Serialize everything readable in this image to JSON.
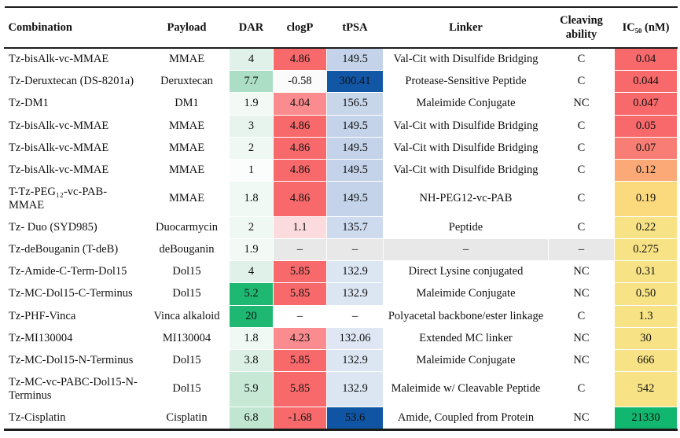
{
  "table": {
    "columns": [
      {
        "key": "combination",
        "label": "Combination"
      },
      {
        "key": "payload",
        "label": "Payload"
      },
      {
        "key": "dar",
        "label": "DAR"
      },
      {
        "key": "clogp",
        "label": "clogP"
      },
      {
        "key": "tpsa",
        "label": "tPSA"
      },
      {
        "key": "linker",
        "label": "Linker"
      },
      {
        "key": "cleaving",
        "label": "Cleaving ability"
      },
      {
        "key": "ic50",
        "label": "IC₅₀ (nM)"
      }
    ],
    "legend_colors": {
      "strong_red": "#F8696B",
      "light_red": "#FA8B8E",
      "pale_pink": "#FBDBDD",
      "orange": "#FAA977",
      "yellow": "#F7E385",
      "strong_green": "#1EB873",
      "light_green": "#E0F1E9",
      "light_blue": "#C4D3E9",
      "pale_blue": "#DCE6F3",
      "dark_blue": "#1157A6",
      "missing_gray": "#E8E8E8"
    },
    "rows": [
      {
        "combination": "Tz-bisAlk-vc-MMAE",
        "payload": "MMAE",
        "dar": "4",
        "clogp": "4.86",
        "tpsa": "149.5",
        "linker": "Val-Cit with Disulfide Bridging",
        "cleaving": "C",
        "ic50": "0.04",
        "colors": {
          "dar": "#E0F1E9",
          "clogp": "#F8696B",
          "tpsa": "#C4D3E9",
          "ic50": "#F8696B"
        }
      },
      {
        "combination": "Tz-Deruxtecan (DS-8201a)",
        "payload": "Deruxtecan",
        "dar": "7.7",
        "clogp": "-0.58",
        "tpsa": "300.41",
        "linker": "Protease-Sensitive Peptide",
        "cleaving": "C",
        "ic50": "0.044",
        "colors": {
          "dar": "#ACDEC5",
          "clogp": "#FCFBFC",
          "tpsa": "#1157A6",
          "ic50": "#F8696B"
        }
      },
      {
        "combination": "Tz-DM1",
        "payload": "DM1",
        "dar": "1.9",
        "clogp": "4.04",
        "tpsa": "156.5",
        "linker": "Maleimide Conjugate",
        "cleaving": "NC",
        "ic50": "0.047",
        "colors": {
          "dar": "#F3FAF6",
          "clogp": "#FA8B8E",
          "tpsa": "#C8D6EA",
          "ic50": "#F8696B"
        }
      },
      {
        "combination": "Tz-bisAlk-vc-MMAE",
        "payload": "MMAE",
        "dar": "3",
        "clogp": "4.86",
        "tpsa": "149.5",
        "linker": "Val-Cit with Disulfide Bridging",
        "cleaving": "C",
        "ic50": "0.05",
        "colors": {
          "dar": "#E7F4ED",
          "clogp": "#F8696B",
          "tpsa": "#C4D3E9",
          "ic50": "#F8696B"
        }
      },
      {
        "combination": "Tz-bisAlk-vc-MMAE",
        "payload": "MMAE",
        "dar": "2",
        "clogp": "4.86",
        "tpsa": "149.5",
        "linker": "Val-Cit with Disulfide Bridging",
        "cleaving": "C",
        "ic50": "0.07",
        "colors": {
          "dar": "#F0F8F3",
          "clogp": "#F8696B",
          "tpsa": "#C4D3E9",
          "ic50": "#F87D74"
        }
      },
      {
        "combination": "Tz-bisAlk-vc-MMAE",
        "payload": "MMAE",
        "dar": "1",
        "clogp": "4.86",
        "tpsa": "149.5",
        "linker": "Val-Cit with Disulfide Bridging",
        "cleaving": "C",
        "ic50": "0.12",
        "colors": {
          "dar": "#FAFDFB",
          "clogp": "#F8696B",
          "tpsa": "#C4D3E9",
          "ic50": "#FAA977"
        }
      },
      {
        "combination": "T-Tz-PEG₁₂-vc-PAB-MMAE",
        "payload": "MMAE",
        "dar": "1.8",
        "clogp": "4.86",
        "tpsa": "149.5",
        "linker": "NH-PEG12-vc-PAB",
        "cleaving": "C",
        "ic50": "0.19",
        "colors": {
          "dar": "#F1F9F4",
          "clogp": "#F8696B",
          "tpsa": "#C4D3E9",
          "ic50": "#FBD97D"
        }
      },
      {
        "combination": "Tz- Duo (SYD985)",
        "payload": "Duocarmycin",
        "dar": "2",
        "clogp": "1.1",
        "tpsa": "135.7",
        "linker": "Peptide",
        "cleaving": "C",
        "ic50": "0.22",
        "colors": {
          "dar": "#F0F8F3",
          "clogp": "#FBDBDD",
          "tpsa": "#CEDAEE",
          "ic50": "#F7E385"
        }
      },
      {
        "combination": "Tz-deBouganin (T-deB)",
        "payload": "deBouganin",
        "dar": "1.9",
        "clogp": "–",
        "tpsa": "–",
        "linker": "–",
        "cleaving": "–",
        "ic50": "0.275",
        "colors": {
          "dar": "#F3FAF6",
          "clogp": "#E8E8E8",
          "tpsa": "#E8E8E8",
          "linker": "#E8E8E8",
          "cleaving": "#E8E8E8",
          "ic50": "#F7E385"
        }
      },
      {
        "combination": "Tz-Amide-C-Term-Dol15",
        "payload": "Dol15",
        "dar": "4",
        "clogp": "5.85",
        "tpsa": "132.9",
        "linker": "Direct Lysine conjugated",
        "cleaving": "NC",
        "ic50": "0.31",
        "colors": {
          "dar": "#E0F1E9",
          "clogp": "#F8696B",
          "tpsa": "#DCE6F3",
          "ic50": "#F7E385"
        }
      },
      {
        "combination": "Tz-MC-Dol15-C-Terminus",
        "payload": "Dol15",
        "dar": "5.2",
        "clogp": "5.85",
        "tpsa": "132.9",
        "linker": "Maleimide Conjugate",
        "cleaving": "NC",
        "ic50": "0.50",
        "colors": {
          "dar": "#1EB873",
          "clogp": "#F8696B",
          "tpsa": "#DCE6F3",
          "ic50": "#F7E385"
        }
      },
      {
        "combination": "Tz-PHF-Vinca",
        "payload": "Vinca alkaloid",
        "dar": "20",
        "clogp": "–",
        "tpsa": "–",
        "linker": "Polyacetal backbone/ester linkage",
        "cleaving": "C",
        "ic50": "1.3",
        "colors": {
          "dar": "#1EB873",
          "ic50": "#F7E385"
        }
      },
      {
        "combination": "Tz-MI130004",
        "payload": "MI130004",
        "dar": "1.8",
        "clogp": "4.23",
        "tpsa": "132.06",
        "linker": "Extended MC linker",
        "cleaving": "NC",
        "ic50": "30",
        "colors": {
          "dar": "#F1F9F4",
          "clogp": "#FA8B8E",
          "tpsa": "#DEE7F3",
          "ic50": "#F7E385"
        }
      },
      {
        "combination": "Tz-MC-Dol15-N-Terminus",
        "payload": "Dol15",
        "dar": "3.8",
        "clogp": "5.85",
        "tpsa": "132.9",
        "linker": "Maleimide Conjugate",
        "cleaving": "NC",
        "ic50": "666",
        "colors": {
          "dar": "#DDF0E6",
          "clogp": "#F8696B",
          "tpsa": "#DCE6F3",
          "ic50": "#F7E385"
        }
      },
      {
        "combination": "Tz-MC-vc-PABC-Dol15-N-Terminus",
        "payload": "Dol15",
        "dar": "5.9",
        "clogp": "5.85",
        "tpsa": "132.9",
        "linker": "Maleimide w/ Cleavable Peptide",
        "cleaving": "C",
        "ic50": "542",
        "colors": {
          "dar": "#C6E8D5",
          "clogp": "#F8696B",
          "tpsa": "#DCE6F3",
          "ic50": "#F7E385"
        }
      },
      {
        "combination": "Tz-Cisplatin",
        "payload": "Cisplatin",
        "dar": "6.8",
        "clogp": "-1.68",
        "tpsa": "53.6",
        "linker": "Amide, Coupled from Protein",
        "cleaving": "NC",
        "ic50": "21330",
        "colors": {
          "dar": "#C0E6D1",
          "clogp": "#F8696B",
          "tpsa": "#0F55A3",
          "ic50": "#12B76F"
        }
      }
    ]
  }
}
